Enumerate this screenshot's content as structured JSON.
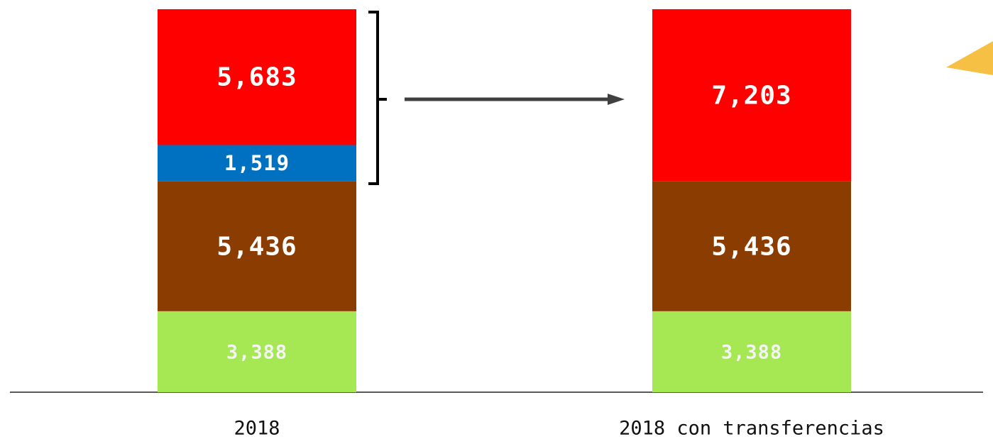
{
  "chart_data": {
    "type": "stacked_bar",
    "categories": [
      "2018",
      "2018 con transferencias"
    ],
    "series": [
      {
        "color": "#a6e853",
        "values": [
          3388,
          3388
        ],
        "value_labels": [
          "3,388",
          "3,388"
        ]
      },
      {
        "color": "#8b3c00",
        "values": [
          5436,
          5436
        ],
        "value_labels": [
          "5,436",
          "5,436"
        ]
      },
      {
        "color": "#0070c0",
        "values": [
          1519,
          null
        ],
        "value_labels": [
          "1,519",
          null
        ]
      },
      {
        "color": "#ff0000",
        "values": [
          5683,
          7203
        ],
        "value_labels": [
          "5,683",
          "7,203"
        ]
      }
    ],
    "ylim": [
      0,
      16026
    ]
  }
}
